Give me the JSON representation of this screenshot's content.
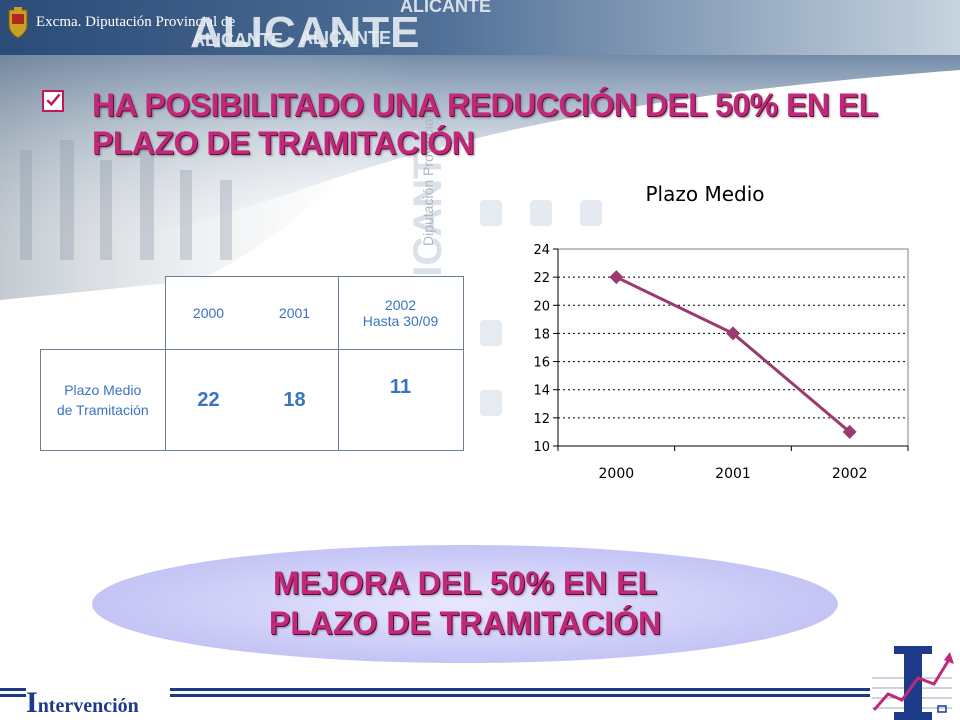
{
  "header": {
    "institution": "Excma. Diputación Provincial de",
    "brand": "ALICANTE",
    "watermark_small": "ALICANTE",
    "watermark_vertical": "ALICANTE",
    "watermark_vertical2": "Diputación Provincial"
  },
  "headline": {
    "line1": "HA POSIBILITADO UNA REDUCCIÓN DEL 50% EN EL",
    "line2": "PLAZO DE TRAMITACIÓN"
  },
  "table": {
    "years": [
      "2000",
      "2001",
      "2002"
    ],
    "year_note": "Hasta 30/09",
    "row_label_line1": "Plazo Medio",
    "row_label_line2": "de Tramitación",
    "values": [
      "22",
      "18",
      "11"
    ]
  },
  "chart_data": {
    "type": "line",
    "title": "Plazo Medio",
    "categories": [
      "2000",
      "2001",
      "2002"
    ],
    "series": [
      {
        "values": [
          22,
          18,
          11
        ]
      }
    ],
    "ylim": [
      10,
      24
    ],
    "yticks": [
      10,
      12,
      14,
      16,
      18,
      20,
      22,
      24
    ],
    "grid": true,
    "color": "#9b3a6e"
  },
  "banner": {
    "line1": "MEJORA DEL 50% EN EL",
    "line2": "PLAZO DE TRAMITACIÓN"
  },
  "footer": {
    "cap": "I",
    "rest": "ntervención"
  },
  "colors": {
    "accent": "#c0287a",
    "table_text": "#3a73c0",
    "footer_text": "#1d3b8a"
  }
}
